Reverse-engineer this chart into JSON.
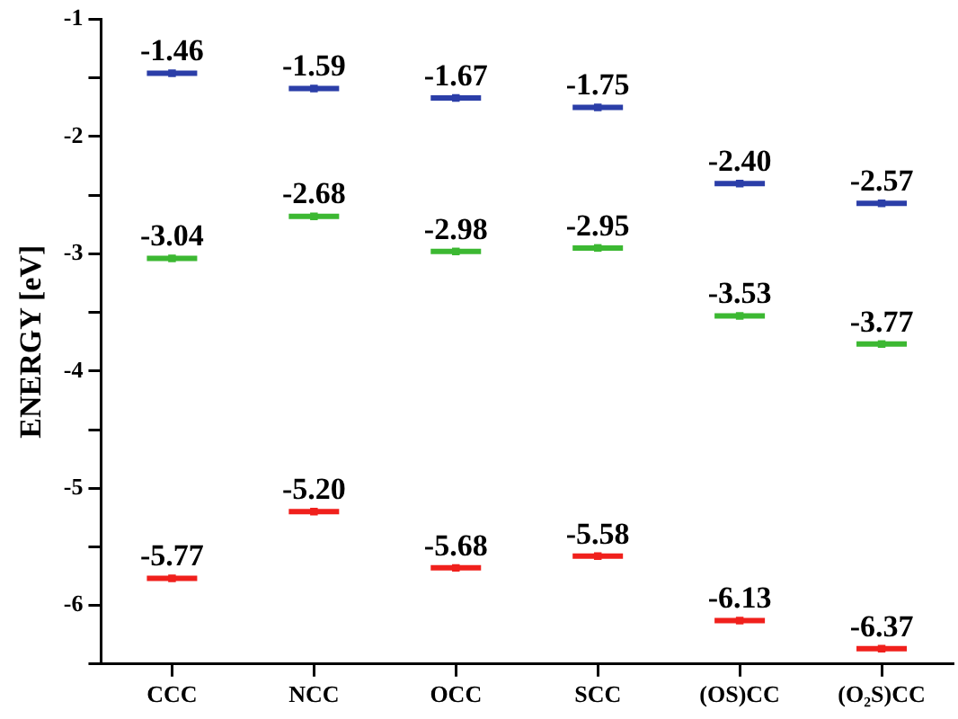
{
  "chart_data": {
    "type": "scatter",
    "ylabel": "ENERGY [eV]",
    "categories": [
      "CCC",
      "NCC",
      "OCC",
      "SCC",
      "(OS)CC",
      "(O₂S)CC"
    ],
    "series": [
      {
        "color": "#2b3ea8",
        "values": [
          -1.46,
          -1.59,
          -1.67,
          -1.75,
          -2.4,
          -2.57
        ],
        "value_labels": [
          "-1.46",
          "-1.59",
          "-1.67",
          "-1.75",
          "-2.40",
          "-2.57"
        ]
      },
      {
        "color": "#3cb832",
        "values": [
          -3.04,
          -2.68,
          -2.98,
          -2.95,
          -3.53,
          -3.77
        ],
        "value_labels": [
          "-3.04",
          "-2.68",
          "-2.98",
          "-2.95",
          "-3.53",
          "-3.77"
        ]
      },
      {
        "color": "#f0201c",
        "values": [
          -5.77,
          -5.2,
          -5.68,
          -5.58,
          -6.13,
          -6.37
        ],
        "value_labels": [
          "-5.77",
          "-5.20",
          "-5.68",
          "-5.58",
          "-6.13",
          "-6.37"
        ]
      }
    ],
    "ylim": [
      -6.5,
      -1
    ],
    "yticks": [
      {
        "value": -6.5,
        "label": null
      },
      -6,
      {
        "value": -5.5,
        "label": null
      },
      -5,
      {
        "value": -4.5,
        "label": null
      },
      -4,
      {
        "value": -3.5,
        "label": null
      },
      -3,
      {
        "value": -2.5,
        "label": null
      },
      -2,
      {
        "value": -1.5,
        "label": null
      },
      -1
    ],
    "grid": false,
    "legend": false
  }
}
